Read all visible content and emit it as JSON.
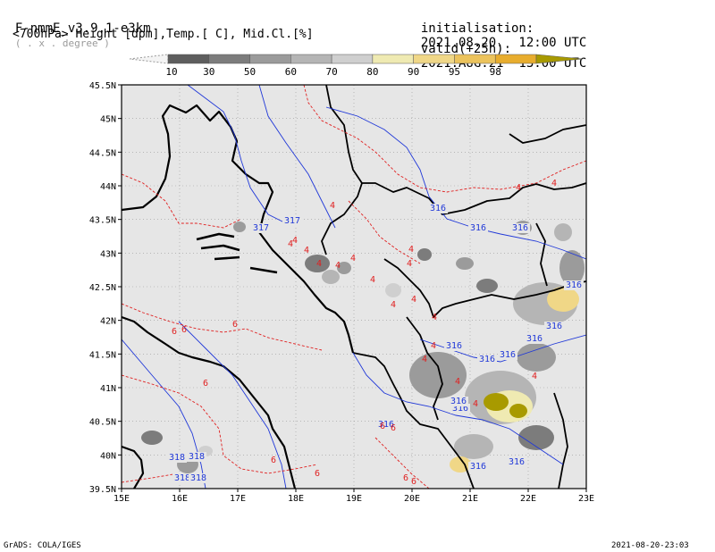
{
  "header": {
    "model": "F-nmmE_v3.9.1-e3km",
    "units_note": "( . x . degree )",
    "variables": "<700hPa> Height [dpm],Temp.[ C], Mid.Cl.[%]",
    "init_label": "initialisation:",
    "init_value": "2021.08.20.  12:00 UTC",
    "valid_label": "valid(+25h):",
    "valid_value": "2021.AUG.21  13:00 UTC"
  },
  "colorbar": {
    "ticks": [
      "10",
      "30",
      "50",
      "60",
      "70",
      "80",
      "90",
      "95",
      "98"
    ],
    "colors": [
      "#5e5e5e",
      "#7c7c7c",
      "#9b9b9b",
      "#b5b5b5",
      "#cfcfcf",
      "#efeab2",
      "#f0d787",
      "#ecc35c",
      "#e8ad2e",
      "#a89a00"
    ]
  },
  "map": {
    "lat_labels": [
      "45.5N",
      "45N",
      "44.5N",
      "44N",
      "43.5N",
      "43N",
      "42.5N",
      "42N",
      "41.5N",
      "41N",
      "40.5N",
      "40N",
      "39.5N"
    ],
    "lon_labels": [
      "15E",
      "16E",
      "17E",
      "18E",
      "19E",
      "20E",
      "21E",
      "22E",
      "23E"
    ],
    "lon_range": [
      15,
      23
    ],
    "lat_range": [
      39.5,
      45.5
    ],
    "height_labels": [
      "317",
      "317",
      "316",
      "316",
      "316",
      "316",
      "316",
      "316",
      "316",
      "316",
      "316",
      "316",
      "316",
      "316",
      "316",
      "316",
      "318",
      "318",
      "318",
      "318"
    ],
    "temp_labels": [
      "4",
      "4",
      "4",
      "4",
      "4",
      "4",
      "4",
      "4",
      "4",
      "4",
      "4",
      "4",
      "4",
      "4",
      "4",
      "4",
      "4",
      "4",
      "4",
      "4",
      "6",
      "6",
      "6",
      "6",
      "6",
      "6",
      "6",
      "6",
      "6",
      "6"
    ],
    "colors": {
      "height": "#2038d8",
      "temp": "#e02020",
      "coast": "#000000",
      "sea": "#e6e6e6"
    }
  },
  "footer": {
    "left": "GrADS: COLA/IGES",
    "right": "2021-08-20-23:03"
  }
}
